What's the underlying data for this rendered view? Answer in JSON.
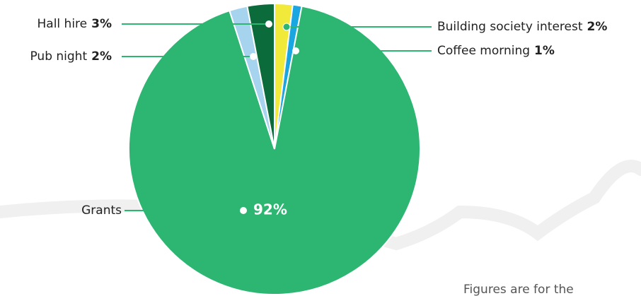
{
  "chart_data": {
    "type": "pie",
    "categories": [
      "Building society interest",
      "Coffee morning",
      "Grants",
      "Pub night",
      "Hall hire"
    ],
    "values": [
      2,
      1,
      92,
      2,
      3
    ],
    "value_labels": [
      "2%",
      "1%",
      "92%",
      "2%",
      "3%"
    ],
    "colors": [
      "#f2ea3a",
      "#1aa6e0",
      "#2db672",
      "#a6d4ef",
      "#0b6b3a"
    ],
    "note": "Figures are for the"
  }
}
